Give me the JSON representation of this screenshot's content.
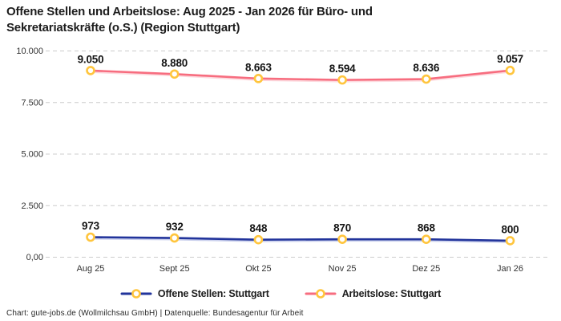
{
  "header": {
    "title_lines": [
      "Offene Stellen und Arbeitslose: Aug 2025 - Jan 2026 für Büro- und",
      "Sekretariatskräfte (o.S.) (Region Stuttgart)"
    ]
  },
  "chart_data": {
    "type": "line",
    "title": "Offene Stellen und Arbeitslose: Aug 2025 - Jan 2026 für Büro- und Sekretariatskräfte (o.S.) (Region Stuttgart)",
    "xlabel": "",
    "ylabel": "",
    "categories": [
      "Aug 25",
      "Sept 25",
      "Okt 25",
      "Nov 25",
      "Dez 25",
      "Jan 26"
    ],
    "series": [
      {
        "name": "Offene Stellen: Stuttgart",
        "color": "#22349B",
        "shadow_color": "#8A97D8",
        "values": [
          973,
          932,
          848,
          870,
          868,
          800
        ],
        "labels": [
          "973",
          "932",
          "848",
          "870",
          "868",
          "800"
        ]
      },
      {
        "name": "Arbeitslose: Stuttgart",
        "color": "#F76D7F",
        "shadow_color": "#FBAAB5",
        "values": [
          9050,
          8880,
          8663,
          8594,
          8636,
          9057
        ],
        "labels": [
          "9.050",
          "8.880",
          "8.663",
          "8.594",
          "8.636",
          "9.057"
        ]
      }
    ],
    "y_ticks": [
      {
        "value": 0,
        "label": "0,00"
      },
      {
        "value": 2500,
        "label": "2.500"
      },
      {
        "value": 5000,
        "label": "5.000"
      },
      {
        "value": 7500,
        "label": "7.500"
      },
      {
        "value": 10000,
        "label": "10.000"
      }
    ],
    "ylim": [
      0,
      10000
    ],
    "grid": "horizontal-dashed",
    "legend_position": "bottom",
    "marker": {
      "fill": "#ffffff",
      "stroke": "#FFC53D"
    }
  },
  "colors": {
    "background": "#ffffff",
    "grid": "#cccccc",
    "tick_text": "#333333",
    "title_text": "#1c1c1c"
  },
  "footer": {
    "credit": "Chart: gute-jobs.de (Wollmilchsau GmbH) | Datenquelle: Bundesagentur für Arbeit"
  }
}
